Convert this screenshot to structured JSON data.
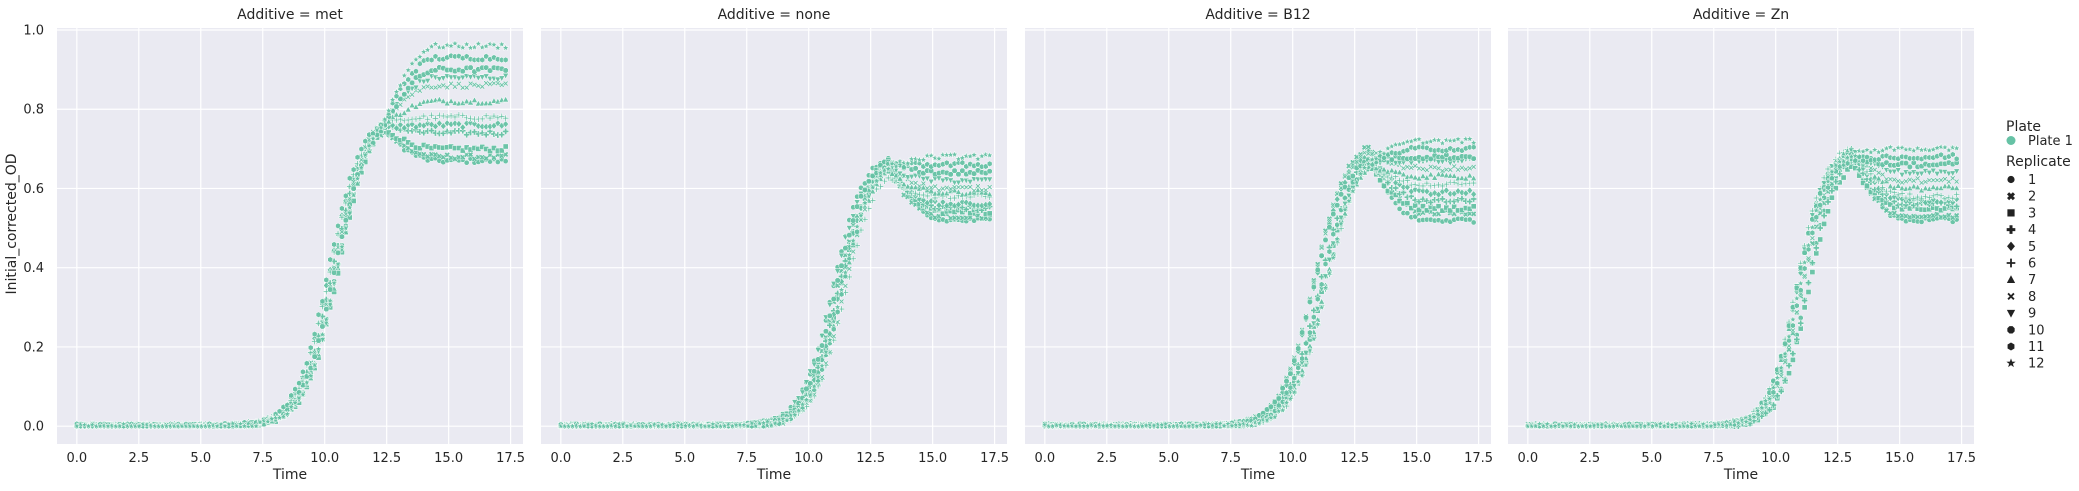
{
  "chart_data": {
    "type": "scatter",
    "xlabel": "Time",
    "ylabel": "Initial_corrected_OD",
    "xlim": [
      -0.8,
      18.0
    ],
    "ylim": [
      -0.045,
      1.005
    ],
    "xticks": [
      0.0,
      2.5,
      5.0,
      7.5,
      10.0,
      12.5,
      15.0,
      17.5
    ],
    "xtick_labels": [
      "0.0",
      "2.5",
      "5.0",
      "7.5",
      "10.0",
      "12.5",
      "15.0",
      "17.5"
    ],
    "yticks": [
      0.0,
      0.2,
      0.4,
      0.6,
      0.8,
      1.0
    ],
    "ytick_labels": [
      "0.0",
      "0.2",
      "0.4",
      "0.6",
      "0.8",
      "1.0"
    ],
    "grid": true,
    "background_color": "#eaeaf2",
    "point_color": "#66c2a5",
    "panels": [
      {
        "title": "Additive = met",
        "midpoint": 10.4,
        "rate": 0.95,
        "plateau_peak": 0.8,
        "final_values": [
          0.67,
          0.68,
          0.7,
          0.74,
          0.76,
          0.78,
          0.82,
          0.86,
          0.88,
          0.9,
          0.93,
          0.96
        ]
      },
      {
        "title": "Additive = none",
        "midpoint": 11.2,
        "rate": 1.0,
        "plateau_peak": 0.69,
        "final_values": [
          0.52,
          0.53,
          0.54,
          0.55,
          0.56,
          0.58,
          0.59,
          0.6,
          0.62,
          0.64,
          0.66,
          0.68
        ]
      },
      {
        "title": "Additive = B12",
        "midpoint": 11.1,
        "rate": 0.95,
        "plateau_peak": 0.71,
        "final_values": [
          0.52,
          0.54,
          0.55,
          0.57,
          0.59,
          0.61,
          0.63,
          0.65,
          0.67,
          0.68,
          0.7,
          0.72
        ]
      },
      {
        "title": "Additive = Zn",
        "midpoint": 11.1,
        "rate": 1.1,
        "plateau_peak": 0.7,
        "final_values": [
          0.52,
          0.53,
          0.55,
          0.56,
          0.57,
          0.58,
          0.6,
          0.62,
          0.64,
          0.66,
          0.68,
          0.7
        ]
      }
    ],
    "time_range": [
      0.0,
      17.3
    ],
    "legend": {
      "placement": "right",
      "hue_title": "Plate",
      "hue_entries": [
        {
          "label": "Plate 1",
          "color": "#66c2a5"
        }
      ],
      "style_title": "Replicate",
      "style_entries": [
        {
          "label": "1",
          "marker": "circle"
        },
        {
          "label": "2",
          "marker": "x"
        },
        {
          "label": "3",
          "marker": "square"
        },
        {
          "label": "4",
          "marker": "plus"
        },
        {
          "label": "5",
          "marker": "diamond"
        },
        {
          "label": "6",
          "marker": "thin-plus"
        },
        {
          "label": "7",
          "marker": "triangle-up"
        },
        {
          "label": "8",
          "marker": "thin-x"
        },
        {
          "label": "9",
          "marker": "triangle-down"
        },
        {
          "label": "10",
          "marker": "octagon"
        },
        {
          "label": "11",
          "marker": "hexagon"
        },
        {
          "label": "12",
          "marker": "star"
        }
      ]
    }
  }
}
